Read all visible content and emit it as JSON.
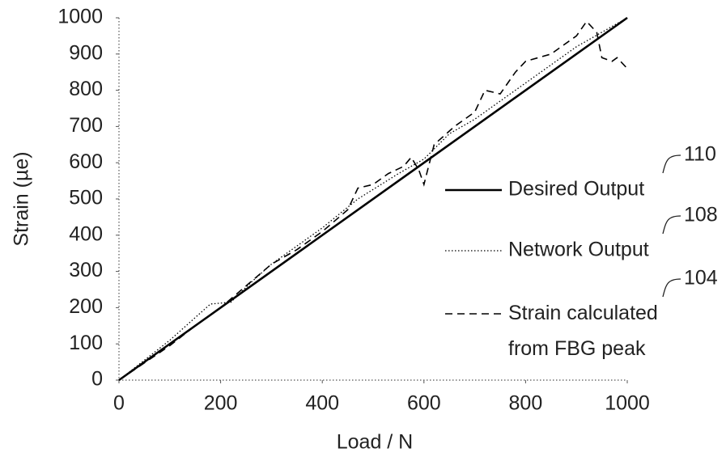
{
  "chart_data": {
    "type": "line",
    "x_label": "Load / N",
    "y_label": "Strain (µe)",
    "xlim": [
      0,
      1000
    ],
    "xticks": [
      0,
      200,
      400,
      600,
      800,
      1000
    ],
    "ylim": [
      0,
      1000
    ],
    "yticks": [
      0,
      100,
      200,
      300,
      400,
      500,
      600,
      700,
      800,
      900,
      1000
    ],
    "series": [
      {
        "name": "Desired Output",
        "color": "#000000",
        "dash": "solid",
        "annotation": "110",
        "x": [
          0,
          1000
        ],
        "values": [
          0,
          1000
        ]
      },
      {
        "name": "Network Output",
        "color": "#000000",
        "dash": "dotted",
        "annotation": "108",
        "x": [
          0,
          100,
          180,
          220,
          260,
          300,
          400,
          470,
          550,
          600,
          650,
          700,
          800,
          900,
          1000
        ],
        "values": [
          0,
          110,
          210,
          215,
          270,
          320,
          420,
          500,
          570,
          610,
          680,
          720,
          820,
          920,
          1000
        ]
      },
      {
        "name": "Strain calculated from FBG peak",
        "color": "#000000",
        "dash": "dashed",
        "annotation": "104",
        "x": [
          0,
          100,
          150,
          200,
          250,
          300,
          350,
          400,
          450,
          470,
          500,
          530,
          560,
          575,
          590,
          600,
          620,
          660,
          700,
          720,
          750,
          780,
          800,
          850,
          900,
          920,
          940,
          950,
          970,
          980,
          1000
        ],
        "values": [
          0,
          95,
          150,
          200,
          260,
          320,
          360,
          410,
          470,
          530,
          540,
          570,
          590,
          615,
          580,
          540,
          650,
          700,
          740,
          800,
          790,
          850,
          880,
          900,
          950,
          990,
          960,
          890,
          880,
          890,
          860
        ]
      }
    ]
  }
}
